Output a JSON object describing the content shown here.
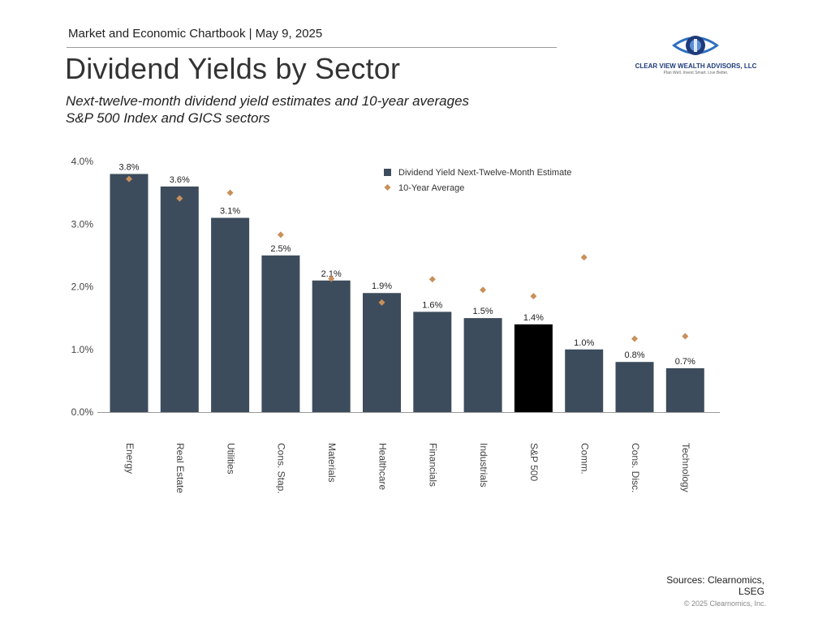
{
  "header": {
    "chartbook": "Market and Economic Chartbook | May 9, 2025",
    "title": "Dividend Yields by Sector",
    "subtitle_line1": "Next-twelve-month dividend yield estimates and 10-year averages",
    "subtitle_line2": "S&P 500 Index and GICS sectors"
  },
  "logo": {
    "name": "CLEAR VIEW WEALTH ADVISORS, LLC",
    "tagline": "Plan Well. Invest Smart. Live Better.",
    "icon": "eye-logo-icon"
  },
  "colors": {
    "bar": "#3d4c5c",
    "highlight_bar": "#000000",
    "marker": "#c8905a",
    "axis": "#999999"
  },
  "chart_data": {
    "type": "bar",
    "categories": [
      "Energy",
      "Real Estate",
      "Utilities",
      "Cons. Stap.",
      "Materials",
      "Healthcare",
      "Financials",
      "Industrials",
      "S&P 500",
      "Comm.",
      "Cons. Disc.",
      "Technology"
    ],
    "series": [
      {
        "name": "Dividend Yield Next-Twelve-Month Estimate",
        "type": "bar",
        "values": [
          3.8,
          3.6,
          3.1,
          2.5,
          2.1,
          1.9,
          1.6,
          1.5,
          1.4,
          1.0,
          0.8,
          0.7
        ],
        "labels": [
          "3.8%",
          "3.6%",
          "3.1%",
          "2.5%",
          "2.1%",
          "1.9%",
          "1.6%",
          "1.5%",
          "1.4%",
          "1.0%",
          "0.8%",
          "0.7%"
        ],
        "highlight_category": "S&P 500"
      },
      {
        "name": "10-Year Average",
        "type": "scatter",
        "marker": "diamond",
        "values": [
          3.72,
          3.41,
          3.5,
          2.83,
          2.13,
          1.75,
          2.12,
          1.95,
          1.85,
          2.47,
          1.17,
          1.21
        ]
      }
    ],
    "y_ticks": [
      "0.0%",
      "1.0%",
      "2.0%",
      "3.0%",
      "4.0%"
    ],
    "ylim": [
      0,
      4
    ],
    "legend_position": "top-center",
    "grid": false
  },
  "footer": {
    "sources_line1": "Sources: Clearnomics,",
    "sources_line2": "LSEG",
    "copyright": "© 2025 Clearnomics, Inc."
  }
}
